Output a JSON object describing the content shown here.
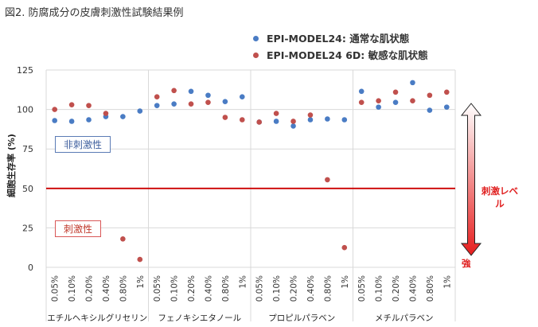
{
  "figure_title": "図2. 防腐成分の皮膚刺激性試験結果例",
  "chart_data": {
    "type": "scatter",
    "title": "",
    "ylabel": "細胞生存率 (%)",
    "xlabel": "",
    "ylim": [
      0,
      125
    ],
    "yticks": [
      0,
      25,
      50,
      75,
      100,
      125
    ],
    "grid": true,
    "legend_position": "top-right",
    "groups": [
      {
        "name": "エチルヘキシルグリセリン",
        "categories": [
          "0.05%",
          "0.10%",
          "0.20%",
          "0.40%",
          "0.80%",
          "1%"
        ]
      },
      {
        "name": "フェノキシエタノール",
        "categories": [
          "0.05%",
          "0.10%",
          "0.20%",
          "0.40%",
          "0.80%",
          "1%"
        ]
      },
      {
        "name": "プロピルパラベン",
        "categories": [
          "0.05%",
          "0.10%",
          "0.20%",
          "0.40%",
          "0.80%",
          "1%"
        ]
      },
      {
        "name": "メチルパラベン",
        "categories": [
          "0.05%",
          "0.10%",
          "0.20%",
          "0.40%",
          "0.80%",
          "1%"
        ]
      }
    ],
    "series": [
      {
        "name": "EPI-MODEL24: 通常な肌状態",
        "color": "#4a7cc4",
        "values": [
          93,
          92.5,
          93.5,
          95.5,
          95.5,
          99,
          102.5,
          103.5,
          111.5,
          109,
          105,
          108,
          92,
          92.5,
          89.5,
          93.5,
          94,
          93.5,
          111.5,
          101.5,
          104.5,
          117,
          99.5,
          101.5
        ]
      },
      {
        "name": "EPI-MODEL24 6D: 敏感な肌状態",
        "color": "#c0504d",
        "values": [
          100,
          103,
          102.5,
          97.5,
          18,
          5,
          108,
          112,
          103.5,
          104.5,
          95,
          93.5,
          92,
          97.5,
          92.5,
          96.5,
          55.5,
          12.5,
          104.5,
          105.5,
          111,
          105.5,
          109,
          111
        ]
      }
    ],
    "threshold": {
      "value": 50,
      "color": "#cc0000"
    },
    "annotations": {
      "non_irritant": "非刺激性",
      "irritant": "刺激性",
      "level": "刺激レベル",
      "strong": "強"
    }
  }
}
